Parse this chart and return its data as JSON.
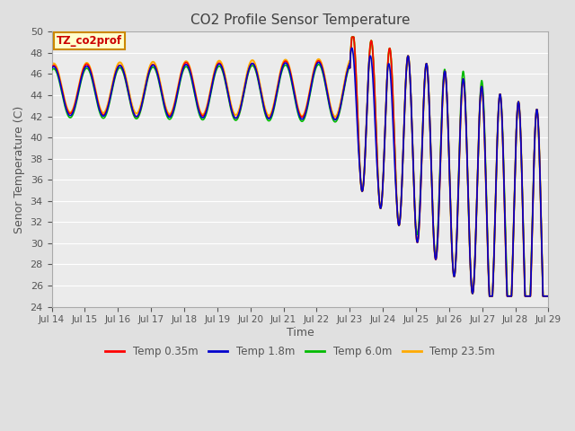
{
  "title": "CO2 Profile Sensor Temperature",
  "xlabel": "Time",
  "ylabel": "Senor Temperature (C)",
  "ylim": [
    24,
    50
  ],
  "yticks": [
    24,
    26,
    28,
    30,
    32,
    34,
    36,
    38,
    40,
    42,
    44,
    46,
    48,
    50
  ],
  "legend_labels": [
    "Temp 0.35m",
    "Temp 1.8m",
    "Temp 6.0m",
    "Temp 23.5m"
  ],
  "legend_colors": [
    "#ff0000",
    "#0000cc",
    "#00bb00",
    "#ffaa00"
  ],
  "annotation_text": "TZ_co2prof",
  "annotation_bg": "#ffffcc",
  "annotation_border": "#cc8800",
  "annotation_text_color": "#cc0000",
  "background_color": "#e0e0e0",
  "plot_bg": "#ebebeb",
  "title_color": "#404040",
  "axis_label_color": "#555555",
  "tick_label_color": "#555555",
  "grid_color": "#ffffff"
}
